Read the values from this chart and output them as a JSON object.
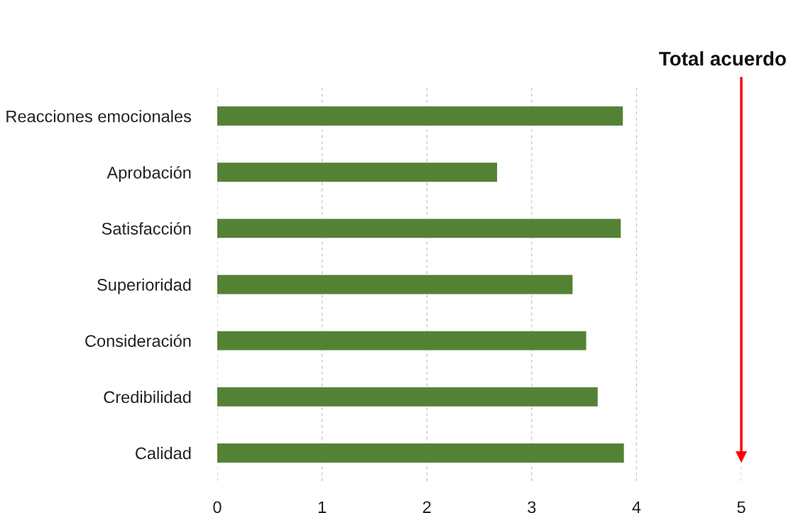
{
  "chart_data": {
    "type": "bar",
    "orientation": "horizontal",
    "categories": [
      "Reacciones emocionales",
      "Aprobación",
      "Satisfacción",
      "Superioridad",
      "Consideración",
      "Credibilidad",
      "Calidad"
    ],
    "values": [
      3.87,
      2.67,
      3.85,
      3.39,
      3.52,
      3.63,
      3.88
    ],
    "color": "#548235",
    "xlim": [
      0,
      5
    ],
    "xticks": [
      0,
      1,
      2,
      3,
      4,
      5
    ],
    "grid": "x",
    "ref_lines": [
      {
        "axis": "x",
        "value": 5,
        "label": "Total acuerdo",
        "color": "#ff0000"
      }
    ]
  }
}
